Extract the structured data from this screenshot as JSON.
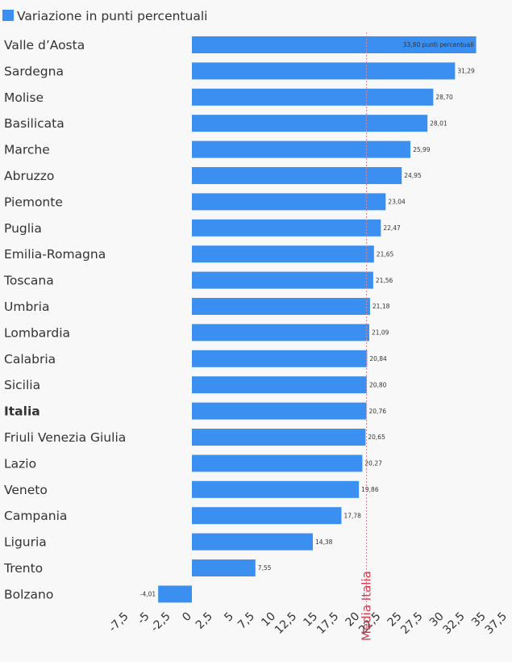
{
  "chart_data": {
    "type": "bar",
    "orientation": "horizontal",
    "legend": {
      "label": "Variazione in punti percentuali",
      "color": "#3a8ff1",
      "position": "top-left"
    },
    "categories": [
      "Valle d’Aosta",
      "Sardegna",
      "Molise",
      "Basilicata",
      "Marche",
      "Abruzzo",
      "Piemonte",
      "Puglia",
      "Emilia-Romagna",
      "Toscana",
      "Umbria",
      "Lombardia",
      "Calabria",
      "Sicilia",
      "Italia",
      "Friuli Venezia Giulia",
      "Lazio",
      "Veneto",
      "Campania",
      "Liguria",
      "Trento",
      "Bolzano"
    ],
    "highlight_category": "Italia",
    "values": [
      33.8,
      31.29,
      28.7,
      28.01,
      25.99,
      24.95,
      23.04,
      22.47,
      21.65,
      21.56,
      21.18,
      21.09,
      20.84,
      20.8,
      20.76,
      20.65,
      20.27,
      19.86,
      17.78,
      14.38,
      7.55,
      -4.01
    ],
    "value_labels": [
      "33,80 punti percentuali",
      "31,29",
      "28,70",
      "28,01",
      "25,99",
      "24,95",
      "23,04",
      "22,47",
      "21,65",
      "21,56",
      "21,18",
      "21,09",
      "20,84",
      "20,80",
      "20,76",
      "20,65",
      "20,27",
      "19,86",
      "17,78",
      "14,38",
      "7,55",
      "-4,01"
    ],
    "xlim": [
      -7.5,
      37.5
    ],
    "x_ticks": [
      -7.5,
      -5,
      -2.5,
      0,
      2.5,
      5,
      7.5,
      10,
      12.5,
      15,
      17.5,
      20,
      22.5,
      25,
      27.5,
      30,
      32.5,
      35,
      37.5
    ],
    "x_tick_labels": [
      "-7,5",
      "-5",
      "-2,5",
      "0",
      "2,5",
      "5",
      "7,5",
      "10",
      "12,5",
      "15",
      "17,5",
      "20",
      "22,5",
      "25",
      "27,5",
      "30",
      "32,5",
      "35",
      "37,5"
    ],
    "reference_line": {
      "value": 20.76,
      "label": "Media Italia",
      "color": "#d43a4d"
    },
    "bar_color": "#3a8ff1"
  }
}
